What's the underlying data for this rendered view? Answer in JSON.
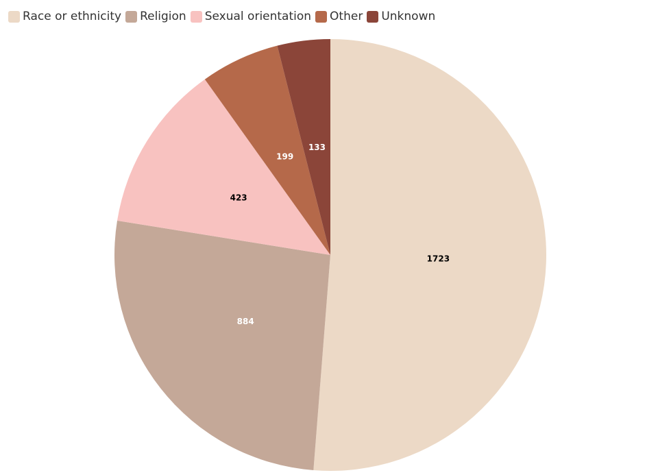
{
  "chart_data": {
    "type": "pie",
    "categories": [
      "Race or ethnicity",
      "Religion",
      "Sexual orientation",
      "Other",
      "Unknown"
    ],
    "values": [
      1723,
      884,
      423,
      199,
      133
    ],
    "colors": [
      "#ecd9c6",
      "#c4a898",
      "#f8c2c0",
      "#b5694a",
      "#8b4539"
    ],
    "legend": "top-left"
  }
}
